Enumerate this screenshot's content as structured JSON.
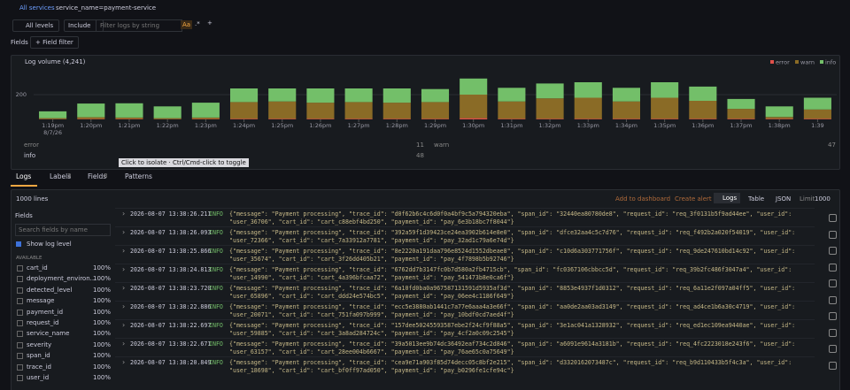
{
  "breadcrumb": {
    "back": "All services",
    "current": "service_name=payment-service"
  },
  "filter_bar": {
    "levels": "All levels",
    "mode": "Include",
    "placeholder": "Filter logs by string",
    "case": "Aa",
    "regex": ".*",
    "add": "+"
  },
  "fields_bar": {
    "label": "Fields",
    "button": "+ Field filter"
  },
  "chart_data": {
    "type": "bar",
    "stacked": true,
    "title": "Log volume (4,241)",
    "categories": [
      "1:19pm",
      "1:20pm",
      "1:21pm",
      "1:22pm",
      "1:23pm",
      "1:24pm",
      "1:25pm",
      "1:26pm",
      "1:27pm",
      "1:28pm",
      "1:29pm",
      "1:30pm",
      "1:31pm",
      "1:32pm",
      "1:33pm",
      "1:34pm",
      "1:35pm",
      "1:36pm",
      "1:37pm",
      "1:38pm",
      "1:39"
    ],
    "date_label": "8/7/26",
    "series": [
      {
        "name": "error",
        "color": "#e0504a",
        "values": [
          2,
          3,
          3,
          2,
          3,
          5,
          5,
          5,
          5,
          5,
          5,
          10,
          5,
          5,
          5,
          5,
          5,
          5,
          5,
          5,
          5
        ]
      },
      {
        "name": "warn",
        "color": "#8a6b26",
        "values": [
          8,
          15,
          12,
          8,
          12,
          135,
          140,
          130,
          135,
          130,
          135,
          190,
          140,
          165,
          170,
          140,
          170,
          145,
          80,
          15,
          75
        ]
      },
      {
        "name": "info",
        "color": "#73bf69",
        "values": [
          55,
          110,
          115,
          95,
          120,
          110,
          105,
          115,
          110,
          115,
          105,
          130,
          110,
          120,
          125,
          110,
          125,
          115,
          80,
          85,
          95
        ]
      }
    ],
    "ylim": [
      0,
      400
    ],
    "yticks": [
      200
    ],
    "grid": true,
    "legend": "top-right"
  },
  "summary_rows": [
    {
      "name": "error",
      "mid": "11",
      "mid_name": "warn",
      "end": "47"
    },
    {
      "name": "info",
      "mid": "48"
    }
  ],
  "tooltip": "Click to isolate · Ctrl/Cmd-click to toggle",
  "tabs": [
    "Logs",
    "Labels",
    "Fields",
    "Patterns"
  ],
  "tab_counts": {
    "labels": "3",
    "fields": "8"
  },
  "logs_toolbar": {
    "lines": "1000 lines",
    "add": "Add to dashboard",
    "alert": "Create alert",
    "logs": "Logs",
    "table": "Table",
    "json": "JSON",
    "limit": "Limit",
    "limit_value": "1000"
  },
  "sidebar": {
    "title": "Fields",
    "search": "Search fields by name",
    "show_level": "Show log level",
    "section": "AVAILABLE",
    "fields": [
      {
        "name": "cart_id",
        "pct": "100%"
      },
      {
        "name": "deployment_environ...",
        "pct": "100%"
      },
      {
        "name": "detected_level",
        "pct": "100%"
      },
      {
        "name": "message",
        "pct": "100%"
      },
      {
        "name": "payment_id",
        "pct": "100%"
      },
      {
        "name": "request_id",
        "pct": "100%"
      },
      {
        "name": "service_name",
        "pct": "100%"
      },
      {
        "name": "severity",
        "pct": "100%"
      },
      {
        "name": "span_id",
        "pct": "100%"
      },
      {
        "name": "trace_id",
        "pct": "100%"
      },
      {
        "name": "user_id",
        "pct": "100%"
      }
    ]
  },
  "log_rows": [
    {
      "time": "2026-08-07 13:38:26.211",
      "level": "INFO",
      "line1": "{\"message\": \"Payment processing\", \"trace_id\": \"d0f62b6c4c6d0f0a4bf9c5a794320eba\", \"span_id\": \"32440ea80780de8\", \"request_id\": \"req_3f0131b5f9ad44ee\", \"user_id\":",
      "line2": "\"user_36706\", \"cart_id\": \"cart_c88ebf4bd250\", \"payment_id\": \"pay_6e3b18bc7f8044\"}"
    },
    {
      "time": "2026-08-07 13:38:26.093",
      "level": "INFO",
      "line1": "{\"message\": \"Payment processing\", \"trace_id\": \"392a59f1d39423ce24ea3902b614e8e0\", \"span_id\": \"dfce32aa4c5c7d76\", \"request_id\": \"req_f492b2a020f54019\", \"user_id\":",
      "line2": "\"user_72366\", \"cart_id\": \"cart_7a33912a7781\", \"payment_id\": \"pay_32ad1c79a6e74d\"}"
    },
    {
      "time": "2026-08-07 13:38:25.866",
      "level": "INFO",
      "line1": "{\"message\": \"Payment processing\", \"trace_id\": \"8e2220a191daa796e8524d1552dbeae8\", \"span_id\": \"c10d6a303771756f\", \"request_id\": \"req_9de247610bd14c92\", \"user_id\":",
      "line2": "\"user_35674\", \"cart_id\": \"cart_3f26dd405b21\", \"payment_id\": \"pay_4f7898b5b92746\"}"
    },
    {
      "time": "2026-08-07 13:38:24.813",
      "level": "INFO",
      "line1": "{\"message\": \"Payment processing\", \"trace_id\": \"6762dd7b3147fc0b7d580a2fb4715cb\", \"span_id\": \"fc0367106cbbcc5d\", \"request_id\": \"req_39b2fc486f3047a4\", \"user_id\":",
      "line2": "\"user_14990\", \"cart_id\": \"cart_4a396bfcaa72\", \"payment_id\": \"pay_541473b8e0ca6f\"}"
    },
    {
      "time": "2026-08-07 13:38:23.720",
      "level": "INFO",
      "line1": "{\"message\": \"Payment processing\", \"trace_id\": \"6a10fd0ba0a967587131591d5935af3d\", \"span_id\": \"8853e4937f1d0312\", \"request_id\": \"req_6a11e2f097a04ff5\", \"user_id\":",
      "line2": "\"user_65896\", \"cart_id\": \"cart_ddd24e574bc5\", \"payment_id\": \"pay_06ee4c1186f649\"}"
    },
    {
      "time": "2026-08-07 13:38:22.886",
      "level": "INFO",
      "line1": "{\"message\": \"Payment processing\", \"trace_id\": \"ecc5e3880ab1441c7a77e6aaa4a3e66f\", \"span_id\": \"aa0de2aa03ad3149\", \"request_id\": \"req_ad4ce1b6a30c4719\", \"user_id\":",
      "line2": "\"user_20071\", \"cart_id\": \"cart_751fa097b999\", \"payment_id\": \"pay_10bdf0cd7aed4f\"}"
    },
    {
      "time": "2026-08-07 13:38:22.697",
      "level": "INFO",
      "line1": "{\"message\": \"Payment processing\", \"trace_id\": \"157dee50245593587ebe2f24cf9f88a5\", \"span_id\": \"3e1ac041a1328932\", \"request_id\": \"req_ed1ec109ea9440ae\", \"user_id\":",
      "line2": "\"user_59885\", \"cart_id\": \"cart_3a8ad284724c\", \"payment_id\": \"pay_4cf2a0c09c2545\"}"
    },
    {
      "time": "2026-08-07 13:38:22.671",
      "level": "INFO",
      "line1": "{\"message\": \"Payment processing\", \"trace_id\": \"39a5013ee9b74dc36492eaf734c2d846\", \"span_id\": \"a6091e9614a3181b\", \"request_id\": \"req_4fc2223018e243f6\", \"user_id\":",
      "line2": "\"user_63157\", \"cart_id\": \"cart_28ee004b6667\", \"payment_id\": \"pay_76ae65c0a75649\"}"
    },
    {
      "time": "2026-08-07 13:38:20.849",
      "level": "INFO",
      "line1": "{\"message\": \"Payment processing\", \"trace_id\": \"cea9e71a903f85d74decc05c8bf2e215\", \"span_id\": \"d3320162073487c\", \"request_id\": \"req_b9d110433b5f4c3a\", \"user_id\":",
      "line2": "\"user_18698\", \"cart_id\": \"cart_bf0ff97ad050\", \"payment_id\": \"pay_b0296fe1cfe94c\"}"
    }
  ]
}
